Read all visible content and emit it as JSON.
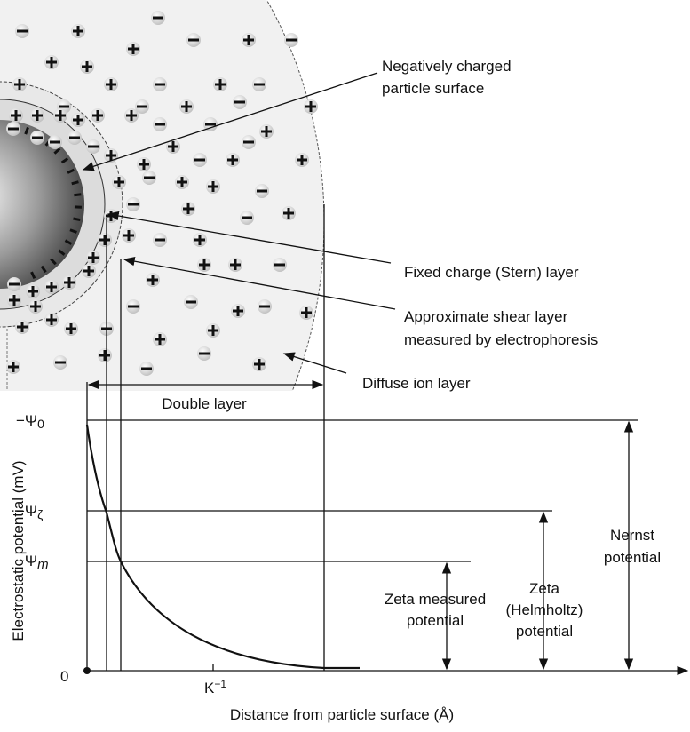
{
  "labels": {
    "surface": [
      "Negatively charged",
      "particle surface"
    ],
    "stern": "Fixed charge (Stern) layer",
    "shear": [
      "Approximate shear layer",
      "measured by electrophoresis"
    ],
    "diffuse": "Diffuse ion layer",
    "double_layer": "Double layer"
  },
  "axis": {
    "y_label": "Electrostatic potential (mV)",
    "x_label": "Distance from particle surface (Å)",
    "origin": "0",
    "x_tick": {
      "base": "K",
      "sup": "−1"
    },
    "y_ticks": [
      {
        "symbol": "−Ψ",
        "sub": "0"
      },
      {
        "symbol": "−Ψ",
        "sub": "ζ"
      },
      {
        "symbol": "−Ψ",
        "sub": "m"
      }
    ]
  },
  "potentials": {
    "nernst": [
      "Nernst",
      "potential"
    ],
    "zeta": [
      "Zeta",
      "(Helmholtz)",
      "potential"
    ],
    "zeta_measured": [
      "Zeta measured",
      "potential"
    ]
  }
}
